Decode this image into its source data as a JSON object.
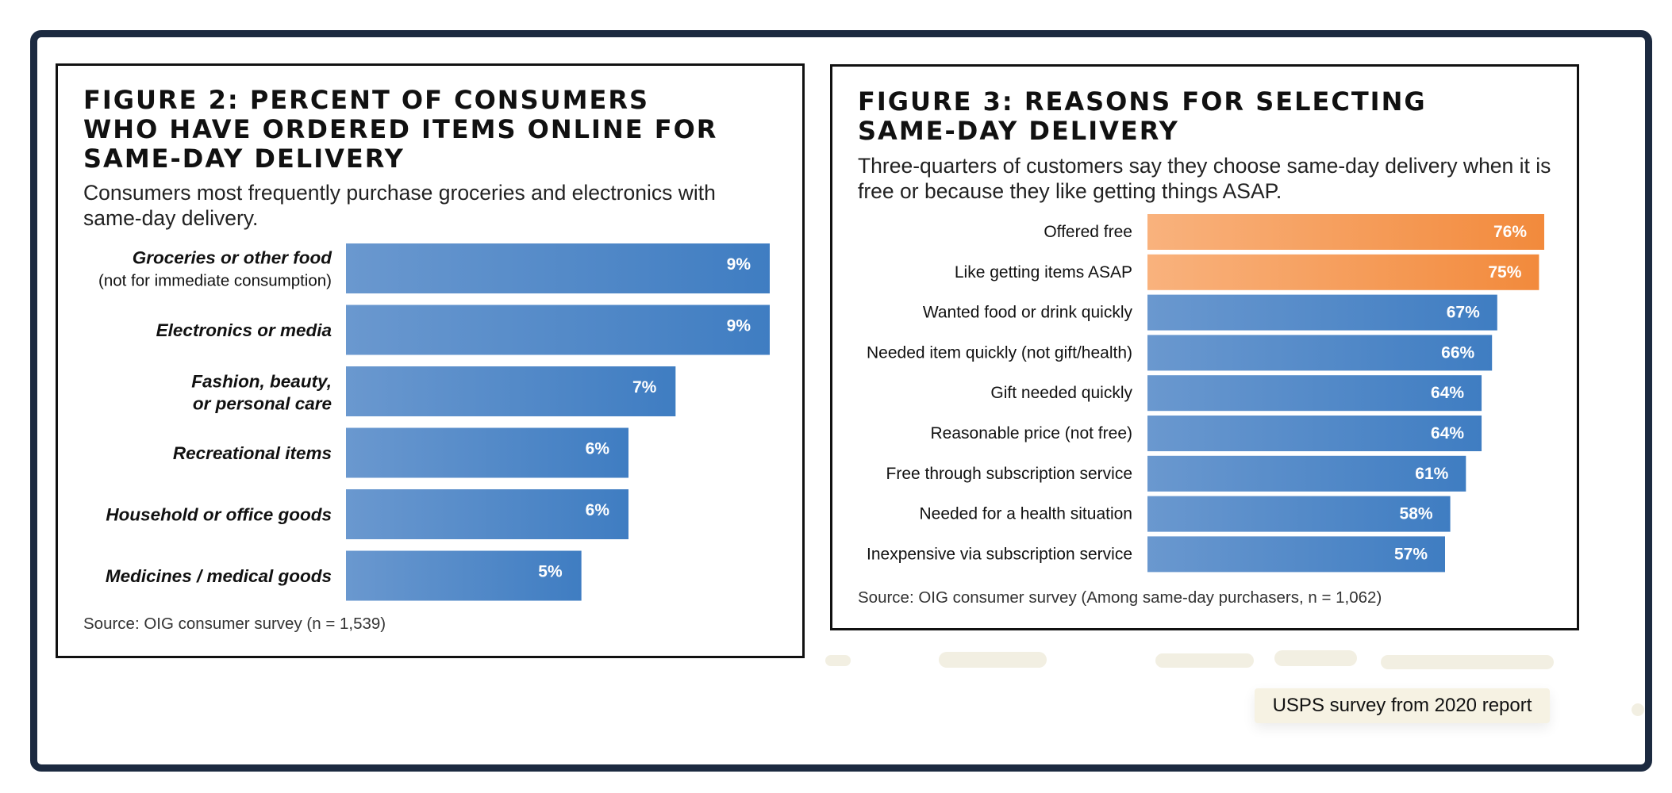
{
  "figures": {
    "fig2": {
      "title": "FIGURE 2: PERCENT OF CONSUMERS\nWHO HAVE ORDERED ITEMS ONLINE FOR\nSAME-DAY DELIVERY",
      "subtitle": "Consumers most frequently purchase groceries and electronics with same-day delivery.",
      "source": "Source: OIG consumer survey (n = 1,539)"
    },
    "fig3": {
      "title": "FIGURE 3: REASONS FOR SELECTING\nSAME-DAY DELIVERY",
      "subtitle": "Three-quarters of customers say they choose same-day delivery when it is free or because they like getting things ASAP.",
      "source": "Source: OIG consumer survey (Among same-day purchasers, n = 1,062)"
    }
  },
  "caption": "USPS survey from 2020 report",
  "colors": {
    "blue_dark": "#3f7dc2",
    "blue_light": "#6a98cf",
    "orange_dark": "#f28a3c",
    "orange_light": "#f9b27d",
    "frame": "#1c2a40"
  },
  "chart_data": [
    {
      "type": "bar",
      "orientation": "horizontal",
      "categories": [
        {
          "label": "Groceries or other food",
          "sublabel": "(not for immediate consumption)"
        },
        {
          "label": "Electronics or media"
        },
        {
          "label": "Fashion, beauty, or personal care"
        },
        {
          "label": "Recreational items"
        },
        {
          "label": "Household or office goods"
        },
        {
          "label": "Medicines / medical goods"
        }
      ],
      "values": [
        9,
        9,
        7,
        6,
        6,
        5
      ],
      "value_labels": [
        "9%",
        "9%",
        "7%",
        "6%",
        "6%",
        "5%"
      ],
      "xlim": [
        0,
        9
      ],
      "unit": "%"
    },
    {
      "type": "bar",
      "orientation": "horizontal",
      "categories": [
        {
          "label": "Offered free"
        },
        {
          "label": "Like getting items ASAP"
        },
        {
          "label": "Wanted food or drink quickly"
        },
        {
          "label": "Needed item quickly (not gift/health)"
        },
        {
          "label": "Gift needed quickly"
        },
        {
          "label": "Reasonable price (not free)"
        },
        {
          "label": "Free through subscription service"
        },
        {
          "label": "Needed for a health situation"
        },
        {
          "label": "Inexpensive via subscription service"
        }
      ],
      "values": [
        76,
        75,
        67,
        66,
        64,
        64,
        61,
        58,
        57
      ],
      "value_labels": [
        "76%",
        "75%",
        "67%",
        "66%",
        "64%",
        "64%",
        "61%",
        "58%",
        "57%"
      ],
      "highlighted": [
        true,
        true,
        false,
        false,
        false,
        false,
        false,
        false,
        false
      ],
      "xlim": [
        0,
        76
      ],
      "unit": "%"
    }
  ]
}
